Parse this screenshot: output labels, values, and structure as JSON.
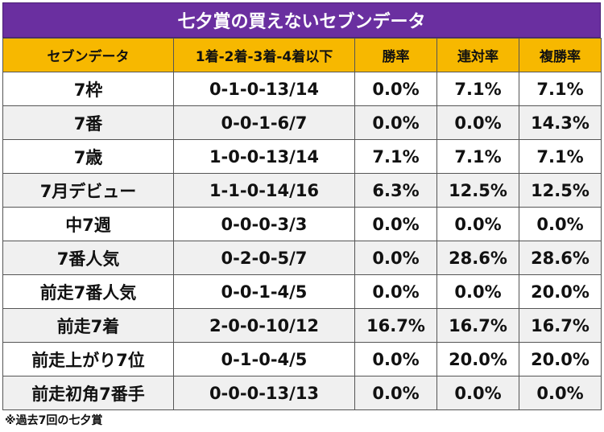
{
  "title": "七夕賞の買えないセブンデータ",
  "headers": [
    "セブンデータ",
    "1着-2着-3着-4着以下",
    "勝率",
    "連対率",
    "複勝率"
  ],
  "rows": [
    [
      "7枠",
      "0-1-0-13/14",
      "0.0%",
      "7.1%",
      "7.1%"
    ],
    [
      "7番",
      "0-0-1-6/7",
      "0.0%",
      "0.0%",
      "14.3%"
    ],
    [
      "7歳",
      "1-0-0-13/14",
      "7.1%",
      "7.1%",
      "7.1%"
    ],
    [
      "7月デビュー",
      "1-1-0-14/16",
      "6.3%",
      "12.5%",
      "12.5%"
    ],
    [
      "中7週",
      "0-0-0-3/3",
      "0.0%",
      "0.0%",
      "0.0%"
    ],
    [
      "7番人気",
      "0-2-0-5/7",
      "0.0%",
      "28.6%",
      "28.6%"
    ],
    [
      "前走7番人気",
      "0-0-1-4/5",
      "0.0%",
      "0.0%",
      "20.0%"
    ],
    [
      "前走7着",
      "2-0-0-10/12",
      "16.7%",
      "16.7%",
      "16.7%"
    ],
    [
      "前走上がり7位",
      "0-1-0-4/5",
      "0.0%",
      "20.0%",
      "20.0%"
    ],
    [
      "前走初角7番手",
      "0-0-0-13/13",
      "0.0%",
      "0.0%",
      "0.0%"
    ]
  ],
  "note": "※過去7回の七夕賞",
  "colors": {
    "title_bg": "#6a2fa0",
    "header_bg": "#f7b800",
    "row_alt_bg": "#f0f0f0"
  }
}
